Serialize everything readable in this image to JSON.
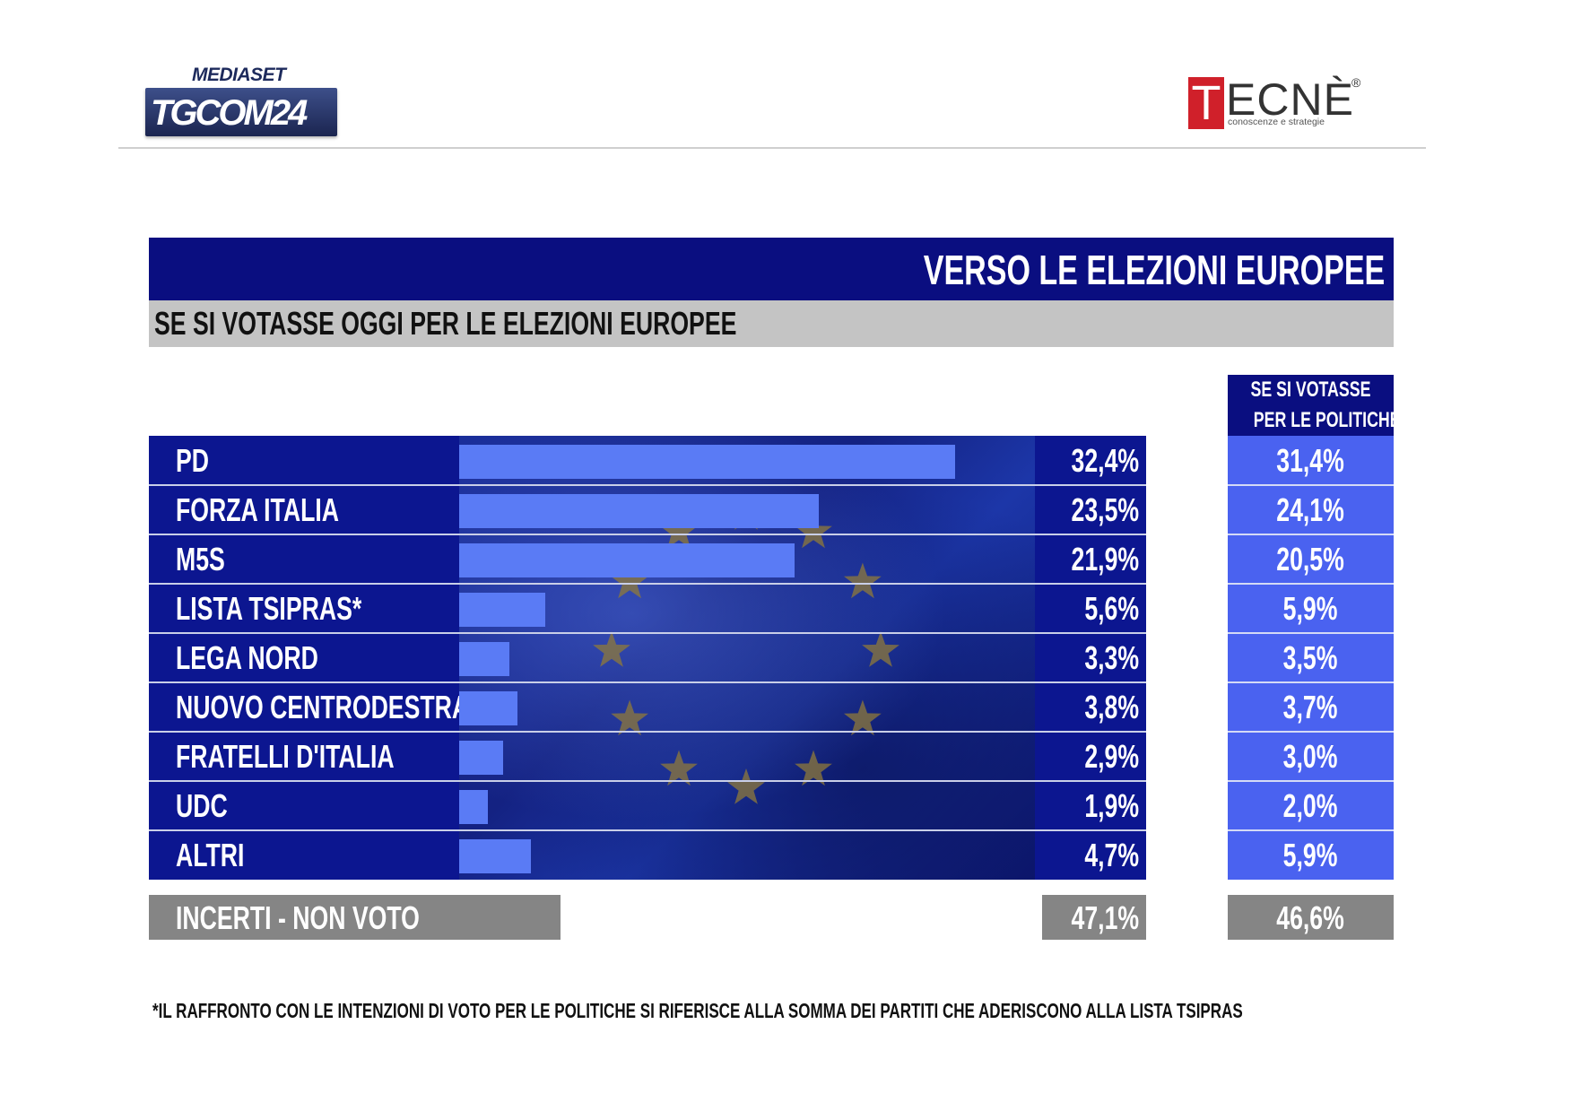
{
  "brand": {
    "mediaset": "MEDIASET",
    "tgcom": "TGCOM",
    "tgcom_num": "24",
    "tecne_initial": "T",
    "tecne_rest": "ECNÈ",
    "tecne_reg": "®",
    "tecne_tagline": "conoscenze e strategie"
  },
  "title": "VERSO LE ELEZIONI EUROPEE",
  "subtitle": "SE SI VOTASSE OGGI PER LE ELEZIONI EUROPEE",
  "politiche_header": {
    "line1": "SE SI VOTASSE",
    "line2": "PER LE POLITICHE"
  },
  "chart_data": {
    "type": "bar",
    "orientation": "horizontal",
    "title": "VERSO LE ELEZIONI EUROPEE",
    "subtitle": "SE SI VOTASSE OGGI PER LE ELEZIONI EUROPEE",
    "categories": [
      "PD",
      "FORZA ITALIA",
      "M5S",
      "LISTA TSIPRAS*",
      "LEGA NORD",
      "NUOVO CENTRODESTRA",
      "FRATELLI D'ITALIA",
      "UDC",
      "ALTRI"
    ],
    "series": [
      {
        "values": [
          32.4,
          23.5,
          21.9,
          5.6,
          3.3,
          3.8,
          2.9,
          1.9,
          4.7
        ],
        "labels": [
          "32,4%",
          "23,5%",
          "21,9%",
          "5,6%",
          "3,3%",
          "3,8%",
          "2,9%",
          "1,9%",
          "4,7%"
        ],
        "color": "#5a7bf5"
      },
      {
        "name": "SE SI VOTASSE PER LE POLITICHE",
        "values": [
          31.4,
          24.1,
          20.5,
          5.9,
          3.5,
          3.7,
          3.0,
          2.0,
          5.9
        ],
        "labels": [
          "31,4%",
          "24,1%",
          "20,5%",
          "5,9%",
          "3,5%",
          "3,7%",
          "3,0%",
          "2,0%",
          "5,9%"
        ]
      }
    ],
    "extra_row": {
      "label": "INCERTI - NON VOTO",
      "europee": "47,1%",
      "politiche": "46,6%"
    },
    "xlim": [
      0,
      32.4
    ],
    "grid": false,
    "legend": "none"
  },
  "footnote": "*IL RAFFRONTO CON LE INTENZIONI DI VOTO PER LE POLITICHE SI RIFERISCE ALLA SOMMA DEI PARTITI CHE ADERISCONO ALLA LISTA TSIPRAS",
  "colors": {
    "header_navy": "#0a0e80",
    "subtitle_gray": "#c4c4c4",
    "bar_blue": "#5a7bf5",
    "politiche_blue": "#4a62f0",
    "incerti_gray": "#858585",
    "tecne_red": "#d0202a"
  }
}
